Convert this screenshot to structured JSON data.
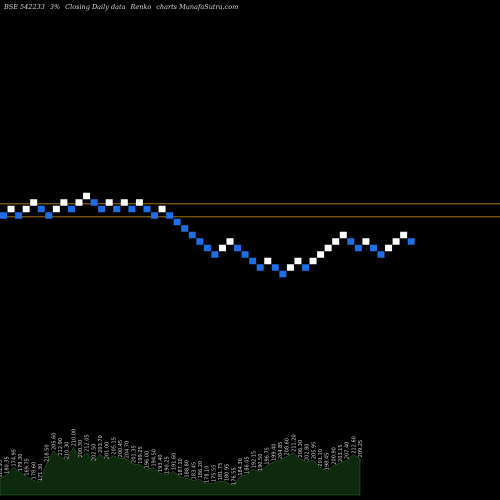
{
  "header": {
    "symbol": "BSE 542233",
    "box_size": "3%",
    "description": "Closing Daily data",
    "chart_type_label": "Renko",
    "brand": "charts MunafaSutra.com"
  },
  "colors": {
    "background": "#000000",
    "up_brick": "#ffffff",
    "down_brick": "#1e6fe6",
    "level_line": "#b8860b",
    "volume_fill": "#0d2a0d",
    "volume_stroke": "#3d6b3d",
    "volume_label": "#cfcfcf"
  },
  "chart_data": {
    "type": "renko",
    "bricks": [
      {
        "dir": "down",
        "level": 0
      },
      {
        "dir": "up",
        "level": 1
      },
      {
        "dir": "down",
        "level": 0
      },
      {
        "dir": "up",
        "level": 1
      },
      {
        "dir": "up",
        "level": 2
      },
      {
        "dir": "down",
        "level": 1
      },
      {
        "dir": "down",
        "level": 0
      },
      {
        "dir": "up",
        "level": 1
      },
      {
        "dir": "up",
        "level": 2
      },
      {
        "dir": "down",
        "level": 1
      },
      {
        "dir": "up",
        "level": 2
      },
      {
        "dir": "up",
        "level": 3
      },
      {
        "dir": "down",
        "level": 2
      },
      {
        "dir": "down",
        "level": 1
      },
      {
        "dir": "up",
        "level": 2
      },
      {
        "dir": "down",
        "level": 1
      },
      {
        "dir": "up",
        "level": 2
      },
      {
        "dir": "down",
        "level": 1
      },
      {
        "dir": "up",
        "level": 2
      },
      {
        "dir": "down",
        "level": 1
      },
      {
        "dir": "down",
        "level": 0
      },
      {
        "dir": "up",
        "level": 1
      },
      {
        "dir": "down",
        "level": 0
      },
      {
        "dir": "down",
        "level": -1
      },
      {
        "dir": "down",
        "level": -2
      },
      {
        "dir": "down",
        "level": -3
      },
      {
        "dir": "down",
        "level": -4
      },
      {
        "dir": "down",
        "level": -5
      },
      {
        "dir": "down",
        "level": -6
      },
      {
        "dir": "up",
        "level": -5
      },
      {
        "dir": "up",
        "level": -4
      },
      {
        "dir": "down",
        "level": -5
      },
      {
        "dir": "down",
        "level": -6
      },
      {
        "dir": "down",
        "level": -7
      },
      {
        "dir": "down",
        "level": -8
      },
      {
        "dir": "up",
        "level": -7
      },
      {
        "dir": "down",
        "level": -8
      },
      {
        "dir": "down",
        "level": -9
      },
      {
        "dir": "up",
        "level": -8
      },
      {
        "dir": "up",
        "level": -7
      },
      {
        "dir": "down",
        "level": -8
      },
      {
        "dir": "up",
        "level": -7
      },
      {
        "dir": "up",
        "level": -6
      },
      {
        "dir": "up",
        "level": -5
      },
      {
        "dir": "up",
        "level": -4
      },
      {
        "dir": "up",
        "level": -3
      },
      {
        "dir": "down",
        "level": -4
      },
      {
        "dir": "down",
        "level": -5
      },
      {
        "dir": "up",
        "level": -4
      },
      {
        "dir": "down",
        "level": -5
      },
      {
        "dir": "down",
        "level": -6
      },
      {
        "dir": "up",
        "level": -5
      },
      {
        "dir": "up",
        "level": -4
      },
      {
        "dir": "up",
        "level": -3
      },
      {
        "dir": "down",
        "level": -4
      }
    ],
    "reference_levels": [
      1.8,
      -0.2
    ],
    "volume": [
      {
        "label": "181.95",
        "value": 18
      },
      {
        "label": "180.35",
        "value": 22
      },
      {
        "label": "174.95",
        "value": 30
      },
      {
        "label": "179.30",
        "value": 25
      },
      {
        "label": "169.75",
        "value": 20
      },
      {
        "label": "178.60",
        "value": 16
      },
      {
        "label": "171.30",
        "value": 14
      },
      {
        "label": "218.50",
        "value": 35
      },
      {
        "label": "205.60",
        "value": 48
      },
      {
        "label": "212.90",
        "value": 42
      },
      {
        "label": "210.30",
        "value": 38
      },
      {
        "label": "210.00",
        "value": 52
      },
      {
        "label": "200.30",
        "value": 40
      },
      {
        "label": "212.05",
        "value": 46
      },
      {
        "label": "202.50",
        "value": 36
      },
      {
        "label": "203.70",
        "value": 45
      },
      {
        "label": "201.00",
        "value": 38
      },
      {
        "label": "205.15",
        "value": 43
      },
      {
        "label": "200.45",
        "value": 40
      },
      {
        "label": "204.70",
        "value": 39
      },
      {
        "label": "201.35",
        "value": 34
      },
      {
        "label": "199.25",
        "value": 33
      },
      {
        "label": "196.00",
        "value": 28
      },
      {
        "label": "194.50",
        "value": 30
      },
      {
        "label": "193.40",
        "value": 24
      },
      {
        "label": "190.25",
        "value": 22
      },
      {
        "label": "191.60",
        "value": 26
      },
      {
        "label": "187.10",
        "value": 20
      },
      {
        "label": "188.80",
        "value": 18
      },
      {
        "label": "183.45",
        "value": 16
      },
      {
        "label": "186.20",
        "value": 17
      },
      {
        "label": "178.10",
        "value": 12
      },
      {
        "label": "175.55",
        "value": 13
      },
      {
        "label": "181.75",
        "value": 15
      },
      {
        "label": "180.95",
        "value": 14
      },
      {
        "label": "176.55",
        "value": 10
      },
      {
        "label": "184.30",
        "value": 20
      },
      {
        "label": "186.05",
        "value": 22
      },
      {
        "label": "192.15",
        "value": 28
      },
      {
        "label": "190.50",
        "value": 25
      },
      {
        "label": "196.75",
        "value": 32
      },
      {
        "label": "199.40",
        "value": 36
      },
      {
        "label": "204.85",
        "value": 38
      },
      {
        "label": "208.60",
        "value": 42
      },
      {
        "label": "211.20",
        "value": 46
      },
      {
        "label": "206.30",
        "value": 40
      },
      {
        "label": "202.80",
        "value": 36
      },
      {
        "label": "205.95",
        "value": 38
      },
      {
        "label": "201.10",
        "value": 30
      },
      {
        "label": "198.45",
        "value": 26
      },
      {
        "label": "200.90",
        "value": 32
      },
      {
        "label": "203.15",
        "value": 35
      },
      {
        "label": "207.40",
        "value": 38
      },
      {
        "label": "212.60",
        "value": 44
      },
      {
        "label": "209.25",
        "value": 40
      }
    ]
  }
}
